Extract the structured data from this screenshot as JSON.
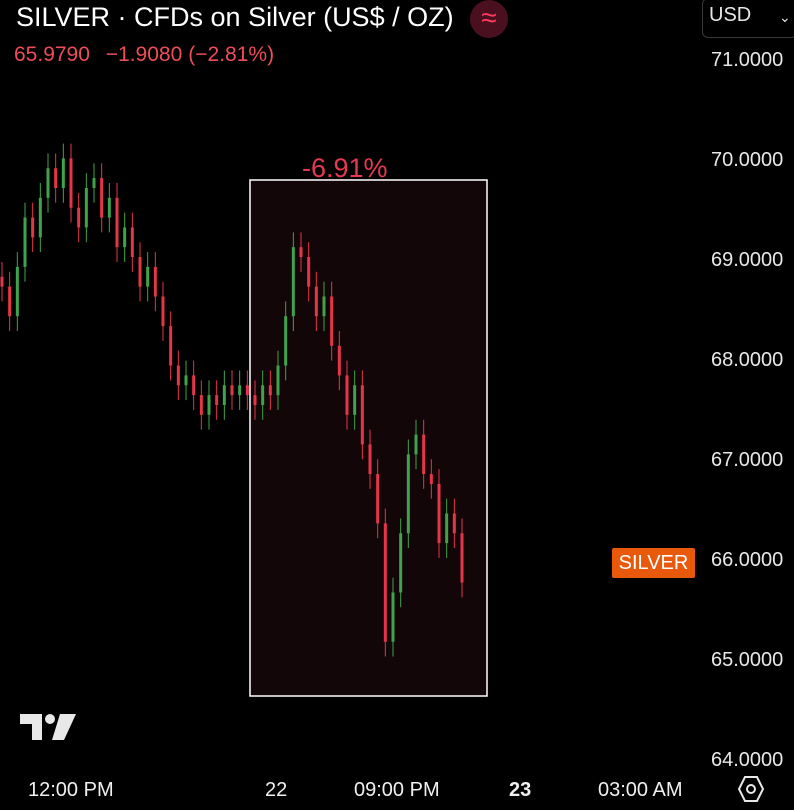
{
  "header": {
    "title": "SILVER · CFDs on Silver (US$ / OZ)",
    "icon": "wave-icon",
    "price": "65.9790",
    "change": "−1.9080",
    "change_pct": "(−2.81%)",
    "price_color": "#ef4c5a"
  },
  "currency": {
    "label": "USD"
  },
  "price_axis": [
    "71.0000",
    "70.0000",
    "69.0000",
    "68.0000",
    "67.0000",
    "66.0000",
    "65.0000",
    "64.0000"
  ],
  "price_tag": {
    "label": "SILVER",
    "color": "#e8590c"
  },
  "measure": {
    "label": "-6.91%",
    "color": "#e53950"
  },
  "time_axis": [
    {
      "label": "12:00 PM",
      "bold": false
    },
    {
      "label": "22",
      "bold": false
    },
    {
      "label": "09:00 PM",
      "bold": false
    },
    {
      "label": "23",
      "bold": true
    },
    {
      "label": "03:00 AM",
      "bold": false
    }
  ],
  "colors": {
    "up": "#3fa34d",
    "down": "#e5354a",
    "background": "#000000"
  },
  "chart_data": {
    "type": "candlestick",
    "ylim": [
      64.0,
      71.4
    ],
    "close": [
      68.9,
      68.6,
      69.1,
      69.6,
      69.4,
      69.8,
      70.1,
      69.9,
      70.2,
      69.7,
      69.5,
      69.9,
      70.0,
      69.6,
      69.8,
      69.3,
      69.5,
      69.2,
      68.9,
      69.1,
      68.8,
      68.5,
      68.1,
      67.9,
      68.0,
      67.8,
      67.6,
      67.8,
      67.7,
      67.9,
      67.8,
      67.9,
      67.8,
      67.7,
      67.9,
      67.8,
      68.1,
      68.6,
      69.3,
      69.2,
      68.9,
      68.6,
      68.8,
      68.3,
      68.0,
      67.6,
      67.9,
      67.3,
      67.0,
      66.5,
      65.3,
      65.8,
      66.4,
      67.2,
      67.4,
      67.0,
      66.9,
      66.3,
      66.6,
      66.4,
      65.9
    ]
  }
}
